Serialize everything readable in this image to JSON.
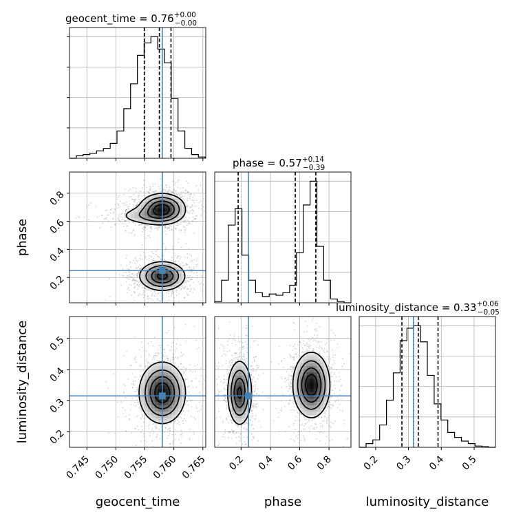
{
  "chart_data": {
    "type": "corner",
    "colors": {
      "truth": "#4682b4",
      "hist": "#000000",
      "grid": "#b0b0b0",
      "scatter": "#7f7f7f"
    },
    "parameters": [
      {
        "name": "geocent_time",
        "axis_label": "geocent_time",
        "range": [
          0.742,
          0.7655
        ],
        "ticks": [
          0.745,
          0.75,
          0.755,
          0.76,
          0.765
        ],
        "tick_labels": [
          "0.745",
          "0.750",
          "0.755",
          "0.760",
          "0.765"
        ],
        "truth": 0.758,
        "quantiles": [
          0.7549,
          0.7575,
          0.7595
        ],
        "title": {
          "prefix": "geocent_time = 0.76",
          "sup": "+0.00",
          "sub": "−0.00"
        },
        "hist": {
          "edges_start": 0.742,
          "bin_width": 0.00117,
          "counts": [
            0,
            0.02,
            0.03,
            0.04,
            0.06,
            0.08,
            0.12,
            0.22,
            0.4,
            0.6,
            0.83,
            0.93,
            0.98,
            0.88,
            0.77,
            0.48,
            0.22,
            0.08,
            0.03,
            0.01
          ]
        }
      },
      {
        "name": "phase",
        "axis_label": "phase",
        "range": [
          0.02,
          0.95
        ],
        "ticks": [
          0.2,
          0.4,
          0.6,
          0.8
        ],
        "tick_labels": [
          "0.2",
          "0.4",
          "0.6",
          "0.8"
        ],
        "truth": 0.25,
        "quantiles": [
          0.18,
          0.57,
          0.71
        ],
        "title": {
          "prefix": "phase = 0.57",
          "sup": "+0.14",
          "sub": "−0.39"
        },
        "hist": {
          "edges_start": 0.02,
          "bin_width": 0.0465,
          "counts": [
            0.01,
            0.18,
            0.62,
            0.75,
            0.38,
            0.18,
            0.08,
            0.05,
            0.07,
            0.06,
            0.08,
            0.14,
            0.4,
            0.78,
            0.97,
            0.45,
            0.18,
            0.03,
            0.01,
            0.0
          ]
        }
      },
      {
        "name": "luminosity_distance",
        "axis_label": "luminosity_distance",
        "range": [
          0.15,
          0.565
        ],
        "ticks": [
          0.2,
          0.3,
          0.4,
          0.5
        ],
        "tick_labels": [
          "0.2",
          "0.3",
          "0.4",
          "0.5"
        ],
        "truth": 0.315,
        "quantiles": [
          0.28,
          0.33,
          0.39
        ],
        "title": {
          "prefix": "luminosity_distance = 0.33",
          "sup": "+0.06",
          "sub": "−0.05"
        },
        "hist": {
          "edges_start": 0.15,
          "bin_width": 0.02075,
          "counts": [
            0.0,
            0.03,
            0.06,
            0.18,
            0.38,
            0.6,
            0.86,
            0.96,
            0.98,
            0.85,
            0.58,
            0.35,
            0.22,
            0.12,
            0.08,
            0.05,
            0.03,
            0.01,
            0.005,
            0.0
          ]
        }
      }
    ],
    "y_ticks": {
      "phase": {
        "ticks": [
          0.2,
          0.4,
          0.6,
          0.8
        ],
        "tick_labels": [
          "0.2",
          "0.4",
          "0.6",
          "0.8"
        ]
      },
      "luminosity_distance": {
        "range": [
          0.15,
          0.57
        ],
        "ticks": [
          0.2,
          0.3,
          0.4,
          0.5
        ],
        "tick_labels": [
          "0.2",
          "0.3",
          "0.4",
          "0.5"
        ]
      }
    },
    "pairs": [
      {
        "x": "geocent_time",
        "y": "phase",
        "modes": [
          {
            "cx": 0.758,
            "cy": 0.69,
            "sx": 0.0019,
            "sy": 0.052,
            "w": 1.0,
            "tilt": 0.0
          },
          {
            "cx": 0.7555,
            "cy": 0.64,
            "sx": 0.0028,
            "sy": 0.035,
            "w": 0.28,
            "tilt": 0.0
          },
          {
            "cx": 0.758,
            "cy": 0.21,
            "sx": 0.0019,
            "sy": 0.05,
            "w": 0.95,
            "tilt": 0.0
          }
        ],
        "contour_levels": [
          0.11,
          0.3,
          0.55,
          0.8
        ]
      },
      {
        "x": "geocent_time",
        "y": "luminosity_distance",
        "modes": [
          {
            "cx": 0.758,
            "cy": 0.325,
            "sx": 0.0019,
            "sy": 0.047,
            "w": 1.0,
            "tilt": 0.0
          }
        ],
        "contour_levels": [
          0.11,
          0.3,
          0.55,
          0.8
        ]
      },
      {
        "x": "phase",
        "y": "luminosity_distance",
        "modes": [
          {
            "cx": 0.19,
            "cy": 0.325,
            "sx": 0.04,
            "sy": 0.05,
            "w": 0.85,
            "tilt": -0.35
          },
          {
            "cx": 0.68,
            "cy": 0.35,
            "sx": 0.06,
            "sy": 0.05,
            "w": 1.0,
            "tilt": 0.25
          }
        ],
        "contour_levels": [
          0.11,
          0.3,
          0.55,
          0.8
        ]
      }
    ]
  }
}
